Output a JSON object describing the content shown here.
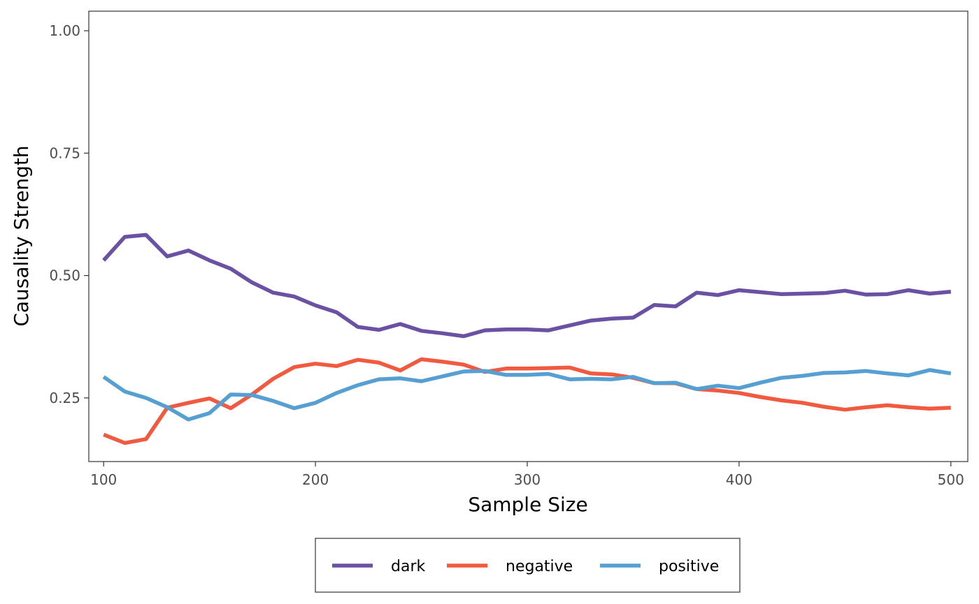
{
  "chart_data": {
    "type": "line",
    "xlabel": "Sample Size",
    "ylabel": "Causality Strength",
    "xlim": [
      93,
      508
    ],
    "ylim": [
      0.12,
      1.04
    ],
    "x_ticks": [
      100,
      200,
      300,
      400,
      500
    ],
    "x_tick_labels": [
      "100",
      "200",
      "300",
      "400",
      "500"
    ],
    "y_ticks": [
      0.25,
      0.5,
      0.75,
      1.0
    ],
    "y_tick_labels": [
      "0.25",
      "0.50",
      "0.75",
      "1.00"
    ],
    "grid": false,
    "legend_position": "bottom",
    "x": [
      100,
      110,
      120,
      130,
      140,
      150,
      160,
      170,
      180,
      190,
      200,
      210,
      220,
      230,
      240,
      250,
      260,
      270,
      280,
      290,
      300,
      310,
      320,
      330,
      340,
      350,
      360,
      370,
      380,
      390,
      400,
      410,
      420,
      430,
      440,
      450,
      460,
      470,
      480,
      490,
      500
    ],
    "series": [
      {
        "name": "dark",
        "color": "#6a51a3",
        "values": [
          0.531,
          0.579,
          0.583,
          0.539,
          0.551,
          0.531,
          0.514,
          0.486,
          0.465,
          0.457,
          0.439,
          0.425,
          0.395,
          0.389,
          0.401,
          0.387,
          0.382,
          0.376,
          0.388,
          0.39,
          0.39,
          0.388,
          0.398,
          0.408,
          0.412,
          0.414,
          0.44,
          0.437,
          0.465,
          0.46,
          0.47,
          0.466,
          0.462,
          0.463,
          0.464,
          0.469,
          0.461,
          0.462,
          0.47,
          0.463,
          0.467
        ]
      },
      {
        "name": "negative",
        "color": "#f15a3e",
        "values": [
          0.175,
          0.158,
          0.166,
          0.23,
          0.24,
          0.249,
          0.229,
          0.257,
          0.289,
          0.313,
          0.32,
          0.315,
          0.328,
          0.322,
          0.306,
          0.329,
          0.324,
          0.318,
          0.303,
          0.31,
          0.31,
          0.311,
          0.312,
          0.3,
          0.298,
          0.291,
          0.28,
          0.28,
          0.268,
          0.265,
          0.26,
          0.252,
          0.245,
          0.24,
          0.232,
          0.226,
          0.231,
          0.235,
          0.231,
          0.228,
          0.23
        ]
      },
      {
        "name": "positive",
        "color": "#569fd3",
        "values": [
          0.293,
          0.263,
          0.25,
          0.231,
          0.206,
          0.219,
          0.257,
          0.256,
          0.244,
          0.229,
          0.24,
          0.26,
          0.276,
          0.288,
          0.29,
          0.284,
          0.294,
          0.304,
          0.305,
          0.297,
          0.297,
          0.299,
          0.288,
          0.289,
          0.288,
          0.293,
          0.28,
          0.281,
          0.268,
          0.275,
          0.27,
          0.281,
          0.291,
          0.295,
          0.301,
          0.302,
          0.305,
          0.3,
          0.296,
          0.307,
          0.3
        ]
      }
    ]
  }
}
